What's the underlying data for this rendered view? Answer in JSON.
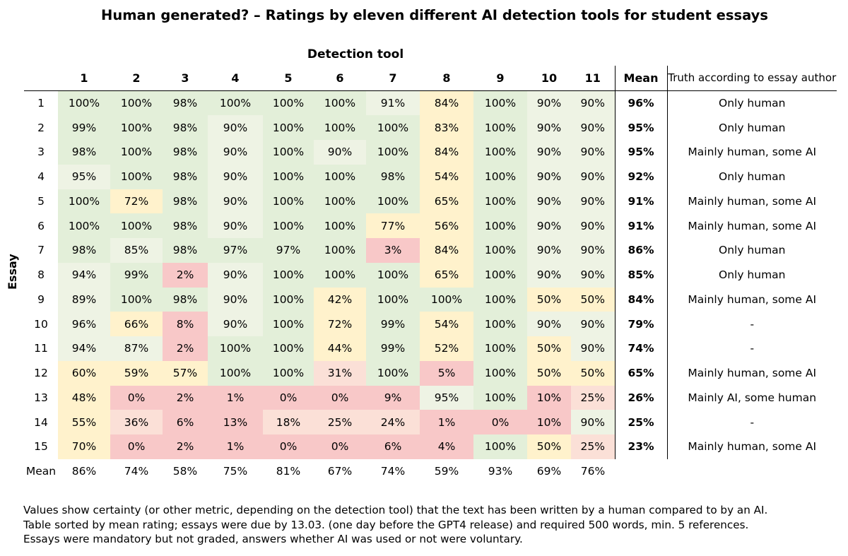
{
  "title": "Human generated? – Ratings by eleven different AI detection tools for student essays",
  "column_group_label": "Detection tool",
  "row_group_label": "Essay",
  "mean_header": "Mean",
  "truth_header": "Truth according to essay author",
  "colors": {
    "green": "#e3efd9",
    "light_green": "#eef3e4",
    "yellow": "#fff2cc",
    "peach": "#fbe0d7",
    "red": "#f8c8c8",
    "line": "#000000"
  },
  "chart_data": {
    "type": "heatmap",
    "title": "Human generated? – Ratings by eleven different AI detection tools for student essays",
    "xlabel": "Detection tool",
    "ylabel": "Essay",
    "columns": [
      "1",
      "2",
      "3",
      "4",
      "5",
      "6",
      "7",
      "8",
      "9",
      "10",
      "11"
    ],
    "rows": [
      {
        "essay": "1",
        "values": [
          "100%",
          "100%",
          "98%",
          "100%",
          "100%",
          "100%",
          "91%",
          "84%",
          "100%",
          "90%",
          "90%"
        ],
        "mean": "96%",
        "truth": "Only human"
      },
      {
        "essay": "2",
        "values": [
          "99%",
          "100%",
          "98%",
          "90%",
          "100%",
          "100%",
          "100%",
          "83%",
          "100%",
          "90%",
          "90%"
        ],
        "mean": "95%",
        "truth": "Only human"
      },
      {
        "essay": "3",
        "values": [
          "98%",
          "100%",
          "98%",
          "90%",
          "100%",
          "90%",
          "100%",
          "84%",
          "100%",
          "90%",
          "90%"
        ],
        "mean": "95%",
        "truth": "Mainly human, some AI"
      },
      {
        "essay": "4",
        "values": [
          "95%",
          "100%",
          "98%",
          "90%",
          "100%",
          "100%",
          "98%",
          "54%",
          "100%",
          "90%",
          "90%"
        ],
        "mean": "92%",
        "truth": "Only human"
      },
      {
        "essay": "5",
        "values": [
          "100%",
          "72%",
          "98%",
          "90%",
          "100%",
          "100%",
          "100%",
          "65%",
          "100%",
          "90%",
          "90%"
        ],
        "mean": "91%",
        "truth": "Mainly human, some AI"
      },
      {
        "essay": "6",
        "values": [
          "100%",
          "100%",
          "98%",
          "90%",
          "100%",
          "100%",
          "77%",
          "56%",
          "100%",
          "90%",
          "90%"
        ],
        "mean": "91%",
        "truth": "Mainly human, some AI"
      },
      {
        "essay": "7",
        "values": [
          "98%",
          "85%",
          "98%",
          "97%",
          "97%",
          "100%",
          "3%",
          "84%",
          "100%",
          "90%",
          "90%"
        ],
        "mean": "86%",
        "truth": "Only human"
      },
      {
        "essay": "8",
        "values": [
          "94%",
          "99%",
          "2%",
          "90%",
          "100%",
          "100%",
          "100%",
          "65%",
          "100%",
          "90%",
          "90%"
        ],
        "mean": "85%",
        "truth": "Only human"
      },
      {
        "essay": "9",
        "values": [
          "89%",
          "100%",
          "98%",
          "90%",
          "100%",
          "42%",
          "100%",
          "100%",
          "100%",
          "50%",
          "50%"
        ],
        "mean": "84%",
        "truth": "Mainly human, some AI"
      },
      {
        "essay": "10",
        "values": [
          "96%",
          "66%",
          "8%",
          "90%",
          "100%",
          "72%",
          "99%",
          "54%",
          "100%",
          "90%",
          "90%"
        ],
        "mean": "79%",
        "truth": "-"
      },
      {
        "essay": "11",
        "values": [
          "94%",
          "87%",
          "2%",
          "100%",
          "100%",
          "44%",
          "99%",
          "52%",
          "100%",
          "50%",
          "90%"
        ],
        "mean": "74%",
        "truth": "-"
      },
      {
        "essay": "12",
        "values": [
          "60%",
          "59%",
          "57%",
          "100%",
          "100%",
          "31%",
          "100%",
          "5%",
          "100%",
          "50%",
          "50%"
        ],
        "mean": "65%",
        "truth": "Mainly human, some AI"
      },
      {
        "essay": "13",
        "values": [
          "48%",
          "0%",
          "2%",
          "1%",
          "0%",
          "0%",
          "9%",
          "95%",
          "100%",
          "10%",
          "25%"
        ],
        "mean": "26%",
        "truth": "Mainly AI, some human"
      },
      {
        "essay": "14",
        "values": [
          "55%",
          "36%",
          "6%",
          "13%",
          "18%",
          "25%",
          "24%",
          "1%",
          "0%",
          "10%",
          "90%"
        ],
        "mean": "25%",
        "truth": "-"
      },
      {
        "essay": "15",
        "values": [
          "70%",
          "0%",
          "2%",
          "1%",
          "0%",
          "0%",
          "6%",
          "4%",
          "100%",
          "50%",
          "25%"
        ],
        "mean": "23%",
        "truth": "Mainly human, some AI"
      }
    ],
    "column_means_label": "Mean",
    "column_means": [
      "86%",
      "74%",
      "58%",
      "75%",
      "81%",
      "67%",
      "74%",
      "59%",
      "93%",
      "69%",
      "76%"
    ]
  },
  "notes": [
    "Values show certainty (or other metric, depending on the detection tool) that the text has been written by a human compared to by an AI.",
    "Table sorted by mean rating; essays were due by 13.03. (one day before the GPT4 release) and required 500 words, min. 5 references.",
    "Essays were mandatory but not graded, answers whether AI was used or not were voluntary."
  ]
}
